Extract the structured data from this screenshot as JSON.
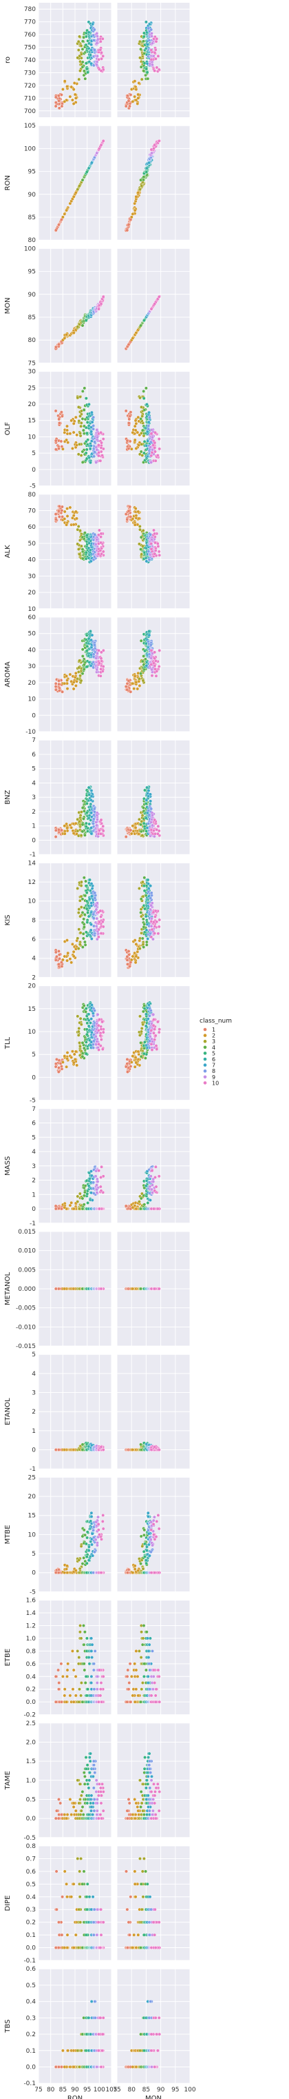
{
  "chart_data": {
    "type": "scatter",
    "title": "",
    "x_variables": [
      {
        "name": "RON",
        "xlim": [
          75,
          105
        ],
        "ticks": [
          75,
          80,
          85,
          90,
          95,
          100,
          105
        ]
      },
      {
        "name": "MON",
        "xlim": [
          75,
          100
        ],
        "ticks": [
          75,
          80,
          85,
          90,
          95,
          100
        ]
      }
    ],
    "y_variables": [
      {
        "name": "ro",
        "ylim": [
          695,
          785
        ],
        "ticks": [
          700,
          710,
          720,
          730,
          740,
          750,
          760,
          770,
          780
        ]
      },
      {
        "name": "RON",
        "ylim": [
          80,
          105
        ],
        "ticks": [
          80,
          85,
          90,
          95,
          100,
          105
        ]
      },
      {
        "name": "MON",
        "ylim": [
          75,
          100
        ],
        "ticks": [
          75,
          80,
          85,
          90,
          95,
          100
        ]
      },
      {
        "name": "OLF",
        "ylim": [
          -5,
          30
        ],
        "ticks": [
          -5,
          0,
          5,
          10,
          15,
          20,
          25,
          30
        ]
      },
      {
        "name": "ALK",
        "ylim": [
          10,
          80
        ],
        "ticks": [
          10,
          20,
          30,
          40,
          50,
          60,
          70,
          80
        ]
      },
      {
        "name": "AROMA",
        "ylim": [
          -10,
          60
        ],
        "ticks": [
          -10,
          0,
          10,
          20,
          30,
          40,
          50,
          60
        ]
      },
      {
        "name": "BNZ",
        "ylim": [
          -1,
          7
        ],
        "ticks": [
          -1,
          0,
          1,
          2,
          3,
          4,
          5,
          6,
          7
        ]
      },
      {
        "name": "KIS",
        "ylim": [
          2,
          14
        ],
        "ticks": [
          2,
          4,
          6,
          8,
          10,
          12,
          14
        ]
      },
      {
        "name": "TLL",
        "ylim": [
          -5,
          20
        ],
        "ticks": [
          -5,
          0,
          5,
          10,
          15,
          20
        ]
      },
      {
        "name": "MASS",
        "ylim": [
          -1,
          7
        ],
        "ticks": [
          -1,
          0,
          1,
          2,
          3,
          4,
          5,
          6,
          7
        ]
      },
      {
        "name": "METANOL",
        "ylim": [
          -0.015,
          0.015
        ],
        "ticks": [
          "-0.015",
          "-0.010",
          "-0.005",
          "0.000",
          "0.005",
          "0.010",
          "0.015"
        ]
      },
      {
        "name": "ETANOL",
        "ylim": [
          -1,
          5
        ],
        "ticks": [
          -1,
          0,
          1,
          2,
          3,
          4,
          5
        ]
      },
      {
        "name": "MTBE",
        "ylim": [
          -5,
          25
        ],
        "ticks": [
          -5,
          0,
          5,
          10,
          15,
          20,
          25
        ]
      },
      {
        "name": "ETBE",
        "ylim": [
          -0.2,
          1.6
        ],
        "ticks": [
          "-0.2",
          "0.0",
          "0.2",
          "0.4",
          "0.6",
          "0.8",
          "1.0",
          "1.2",
          "1.4",
          "1.6"
        ]
      },
      {
        "name": "TAME",
        "ylim": [
          -0.5,
          2.5
        ],
        "ticks": [
          "-0.5",
          "0.0",
          "0.5",
          "1.0",
          "1.5",
          "2.0",
          "2.5"
        ]
      },
      {
        "name": "DIPE",
        "ylim": [
          -0.1,
          0.8
        ],
        "ticks": [
          "-0.1",
          "0.0",
          "0.1",
          "0.2",
          "0.3",
          "0.4",
          "0.5",
          "0.6",
          "0.7",
          "0.8"
        ]
      },
      {
        "name": "TBS",
        "ylim": [
          -0.1,
          0.6
        ],
        "ticks": [
          "-0.1",
          "0.0",
          "0.1",
          "0.2",
          "0.3",
          "0.4",
          "0.5",
          "0.6"
        ]
      }
    ],
    "grid": true,
    "legend": {
      "title": "class_num",
      "placement": "right",
      "entries": [
        "1",
        "2",
        "3",
        "4",
        "5",
        "6",
        "7",
        "8",
        "9",
        "10"
      ],
      "colors": [
        "#e5826b",
        "#d29a2a",
        "#a7a62d",
        "#5fb04a",
        "#36b47f",
        "#35aea6",
        "#39a6c8",
        "#7e9ee8",
        "#c78fe6",
        "#e97bc6"
      ]
    },
    "class_groups": [
      {
        "class": "1",
        "RON": [
          82,
          85
        ],
        "MON": [
          78,
          80
        ],
        "ro": [
          702,
          713
        ],
        "OLF": [
          6,
          18
        ],
        "ALK": [
          63,
          75
        ],
        "AROMA": [
          14,
          22
        ],
        "BNZ": [
          0.2,
          0.9
        ],
        "KIS": [
          3,
          5
        ],
        "TLL": [
          1,
          4
        ],
        "MASS": [
          0,
          0.2
        ],
        "ETANOL": [
          0,
          0
        ],
        "MTBE": [
          0,
          1
        ],
        "ETBE": [
          0,
          0.6
        ],
        "TAME": [
          0,
          0.5
        ],
        "DIPE": [
          0,
          0.6
        ],
        "TBS": [
          0,
          0.05
        ]
      },
      {
        "class": "2",
        "RON": [
          85,
          91
        ],
        "MON": [
          80,
          83
        ],
        "ro": [
          705,
          725
        ],
        "OLF": [
          6,
          16
        ],
        "ALK": [
          60,
          72
        ],
        "AROMA": [
          16,
          26
        ],
        "BNZ": [
          0.4,
          1.2
        ],
        "KIS": [
          3.5,
          6
        ],
        "TLL": [
          2,
          6
        ],
        "MASS": [
          0,
          0.5
        ],
        "ETANOL": [
          0,
          0
        ],
        "MTBE": [
          0,
          2
        ],
        "ETBE": [
          0,
          0.8
        ],
        "TAME": [
          0,
          0.6
        ],
        "DIPE": [
          0,
          0.6
        ],
        "TBS": [
          0,
          0.1
        ]
      },
      {
        "class": "3",
        "RON": [
          91,
          93
        ],
        "MON": [
          82,
          85
        ],
        "ro": [
          720,
          760
        ],
        "OLF": [
          4,
          24
        ],
        "ALK": [
          40,
          62
        ],
        "AROMA": [
          20,
          40
        ],
        "BNZ": [
          0.2,
          2.5
        ],
        "KIS": [
          5,
          12
        ],
        "TLL": [
          4,
          14
        ],
        "MASS": [
          0,
          1.2
        ],
        "ETANOL": [
          0,
          0.2
        ],
        "MTBE": [
          0,
          8
        ],
        "ETBE": [
          0,
          1.2
        ],
        "TAME": [
          0,
          1
        ],
        "DIPE": [
          0,
          0.7
        ],
        "TBS": [
          0,
          0.2
        ]
      },
      {
        "class": "4",
        "RON": [
          93,
          94.5
        ],
        "MON": [
          83,
          86
        ],
        "ro": [
          725,
          765
        ],
        "OLF": [
          2,
          25
        ],
        "ALK": [
          38,
          58
        ],
        "AROMA": [
          25,
          50
        ],
        "BNZ": [
          0.3,
          3
        ],
        "KIS": [
          5,
          13
        ],
        "TLL": [
          4,
          16
        ],
        "MASS": [
          0,
          2
        ],
        "ETANOL": [
          0,
          0.3
        ],
        "MTBE": [
          0,
          12
        ],
        "ETBE": [
          0,
          1.2
        ],
        "TAME": [
          0,
          1.4
        ],
        "DIPE": [
          0,
          0.6
        ],
        "TBS": [
          0,
          0.3
        ]
      },
      {
        "class": "5",
        "RON": [
          94.5,
          95.5
        ],
        "MON": [
          84,
          86
        ],
        "ro": [
          730,
          765
        ],
        "OLF": [
          2,
          22
        ],
        "ALK": [
          40,
          58
        ],
        "AROMA": [
          28,
          50
        ],
        "BNZ": [
          0.5,
          3.5
        ],
        "KIS": [
          6,
          12
        ],
        "TLL": [
          5,
          16
        ],
        "MASS": [
          0.2,
          2.5
        ],
        "ETANOL": [
          0,
          0.4
        ],
        "MTBE": [
          2,
          14
        ],
        "ETBE": [
          0,
          1.2
        ],
        "TAME": [
          0,
          1.6
        ],
        "DIPE": [
          0,
          0.5
        ],
        "TBS": [
          0,
          0.3
        ]
      },
      {
        "class": "6",
        "RON": [
          95.5,
          96.5
        ],
        "MON": [
          84.5,
          86.5
        ],
        "ro": [
          735,
          770
        ],
        "OLF": [
          2,
          20
        ],
        "ALK": [
          38,
          56
        ],
        "AROMA": [
          30,
          52
        ],
        "BNZ": [
          0.5,
          3.8
        ],
        "KIS": [
          6,
          12.5
        ],
        "TLL": [
          6,
          17
        ],
        "MASS": [
          0.5,
          2.8
        ],
        "ETANOL": [
          0,
          0.3
        ],
        "MTBE": [
          3,
          15
        ],
        "ETBE": [
          0,
          1
        ],
        "TAME": [
          0,
          1.8
        ],
        "DIPE": [
          0,
          0.4
        ],
        "TBS": [
          0,
          0.3
        ]
      },
      {
        "class": "7",
        "RON": [
          96.5,
          97.5
        ],
        "MON": [
          85,
          87
        ],
        "ro": [
          735,
          770
        ],
        "OLF": [
          2,
          18
        ],
        "ALK": [
          38,
          56
        ],
        "AROMA": [
          30,
          50
        ],
        "BNZ": [
          0.4,
          3.5
        ],
        "KIS": [
          6,
          12
        ],
        "TLL": [
          6,
          16
        ],
        "MASS": [
          0.5,
          3
        ],
        "ETANOL": [
          0,
          0.3
        ],
        "MTBE": [
          4,
          16
        ],
        "ETBE": [
          0,
          1
        ],
        "TAME": [
          0,
          1.8
        ],
        "DIPE": [
          0,
          0.4
        ],
        "TBS": [
          0,
          0.4
        ]
      },
      {
        "class": "8",
        "RON": [
          97.5,
          98.5
        ],
        "MON": [
          85.5,
          87.5
        ],
        "ro": [
          735,
          765
        ],
        "OLF": [
          2,
          16
        ],
        "ALK": [
          40,
          56
        ],
        "AROMA": [
          28,
          46
        ],
        "BNZ": [
          0.3,
          2.5
        ],
        "KIS": [
          6,
          11
        ],
        "TLL": [
          6,
          15
        ],
        "MASS": [
          0.8,
          3
        ],
        "ETANOL": [
          0,
          0.2
        ],
        "MTBE": [
          5,
          15
        ],
        "ETBE": [
          0,
          0.8
        ],
        "TAME": [
          0,
          1.6
        ],
        "DIPE": [
          0,
          0.3
        ],
        "TBS": [
          0,
          0.4
        ]
      },
      {
        "class": "9",
        "RON": [
          98.5,
          99.5
        ],
        "MON": [
          86,
          88
        ],
        "ro": [
          735,
          762
        ],
        "OLF": [
          2,
          14
        ],
        "ALK": [
          42,
          56
        ],
        "AROMA": [
          26,
          42
        ],
        "BNZ": [
          0.2,
          2
        ],
        "KIS": [
          6,
          10
        ],
        "TLL": [
          6,
          14
        ],
        "MASS": [
          1,
          2.8
        ],
        "ETANOL": [
          0,
          0.2
        ],
        "MTBE": [
          6,
          15
        ],
        "ETBE": [
          0,
          0.6
        ],
        "TAME": [
          0,
          1.2
        ],
        "DIPE": [
          0,
          0.3
        ],
        "TBS": [
          0,
          0.3
        ]
      },
      {
        "class": "10",
        "RON": [
          99.5,
          102
        ],
        "MON": [
          86.5,
          90
        ],
        "ro": [
          730,
          760
        ],
        "OLF": [
          2,
          12
        ],
        "ALK": [
          42,
          58
        ],
        "AROMA": [
          24,
          40
        ],
        "BNZ": [
          0.1,
          1.5
        ],
        "KIS": [
          6,
          9
        ],
        "TLL": [
          6,
          13
        ],
        "MASS": [
          1,
          3
        ],
        "ETANOL": [
          0,
          0.2
        ],
        "MTBE": [
          8,
          16
        ],
        "ETBE": [
          0,
          0.6
        ],
        "TAME": [
          0,
          1
        ],
        "DIPE": [
          0,
          0.3
        ],
        "TBS": [
          0,
          0.3
        ]
      }
    ]
  }
}
